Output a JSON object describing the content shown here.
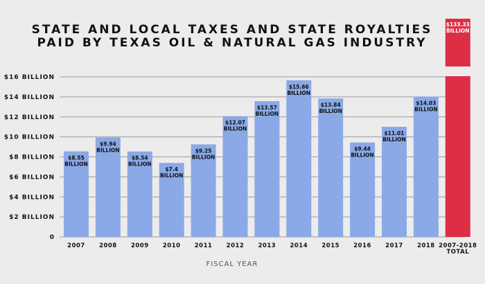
{
  "chart_data": {
    "type": "bar",
    "title": [
      "STATE AND LOCAL TAXES AND STATE ROYALTIES",
      "PAID BY TEXAS OIL & NATURAL GAS INDUSTRY"
    ],
    "xlabel": "FISCAL YEAR",
    "ylabel": "",
    "ylim": [
      0,
      16
    ],
    "yticks": [
      {
        "value": 0,
        "label": "0"
      },
      {
        "value": 2,
        "label": "$2 BILLION"
      },
      {
        "value": 4,
        "label": "$4 BILLION"
      },
      {
        "value": 6,
        "label": "$6 BILLION"
      },
      {
        "value": 8,
        "label": "$8 BILLION"
      },
      {
        "value": 10,
        "label": "$10 BILLION"
      },
      {
        "value": 12,
        "label": "$12 BILLION"
      },
      {
        "value": 14,
        "label": "$14 BILLION"
      },
      {
        "value": 16,
        "label": "$16 BILLION"
      }
    ],
    "grid": true,
    "categories": [
      "2007",
      "2008",
      "2009",
      "2010",
      "2011",
      "2012",
      "2013",
      "2014",
      "2015",
      "2016",
      "2017",
      "2018"
    ],
    "values": [
      8.55,
      9.94,
      8.54,
      7.4,
      9.25,
      12.07,
      13.57,
      15.66,
      13.84,
      9.44,
      11.01,
      14.03
    ],
    "value_labels": [
      "$8.55",
      "$9.94",
      "$8.54",
      "$7.4",
      "$9.25",
      "$12.07",
      "$13.57",
      "$15.66",
      "$13.84",
      "$9.44",
      "$11.01",
      "$14.03"
    ],
    "unit_label": "BILLION",
    "total": {
      "category": [
        "2007-2018",
        "TOTAL"
      ],
      "value": 133.33,
      "value_label": "$133.33",
      "unit_label": "BILLION",
      "broken_axis": true
    },
    "colors": {
      "bar": "#8aa9e6",
      "total": "#dc2f45",
      "grid": "#9a9a9a",
      "background": "#ececec"
    }
  }
}
